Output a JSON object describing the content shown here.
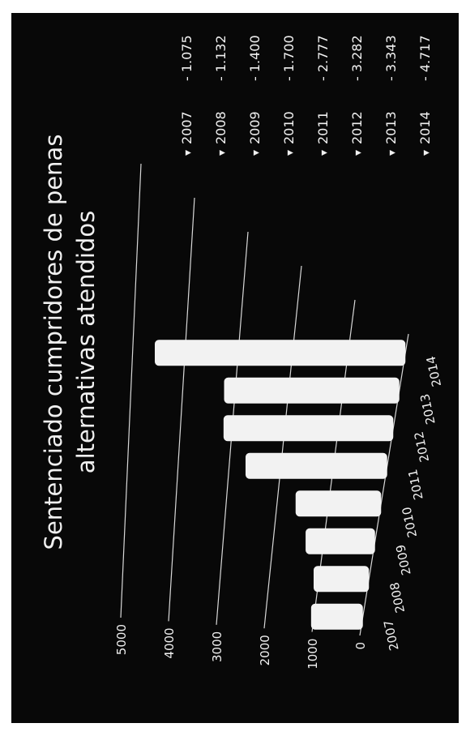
{
  "colors": {
    "background": "#080808",
    "bar": "#f2f2f2",
    "text": "#f0f0f0",
    "grid": "#d8d8d8"
  },
  "chart_data": {
    "type": "bar",
    "title": "Sentenciado cumpridores de penas alternativas atendidos",
    "title_lines": [
      "Sentenciado cumpridores de penas",
      "alternativas atendidos"
    ],
    "categories": [
      "2007",
      "2008",
      "2009",
      "2010",
      "2011",
      "2012",
      "2013",
      "2014"
    ],
    "values": [
      1075,
      1132,
      1400,
      1700,
      2777,
      3282,
      3343,
      4717
    ],
    "yticks": [
      "0",
      "1000",
      "2000",
      "3000",
      "4000",
      "5000"
    ],
    "ylim": [
      0,
      5000
    ],
    "grid": true,
    "legend_position": "right",
    "legend": [
      {
        "year": "2007",
        "value": "- 1.075"
      },
      {
        "year": "2008",
        "value": "- 1.132"
      },
      {
        "year": "2009",
        "value": "- 1.400"
      },
      {
        "year": "2010",
        "value": "- 1.700"
      },
      {
        "year": "2011",
        "value": "- 2.777"
      },
      {
        "year": "2012",
        "value": "- 3.282"
      },
      {
        "year": "2013",
        "value": "- 3.343"
      },
      {
        "year": "2014",
        "value": "- 4.717"
      }
    ]
  }
}
